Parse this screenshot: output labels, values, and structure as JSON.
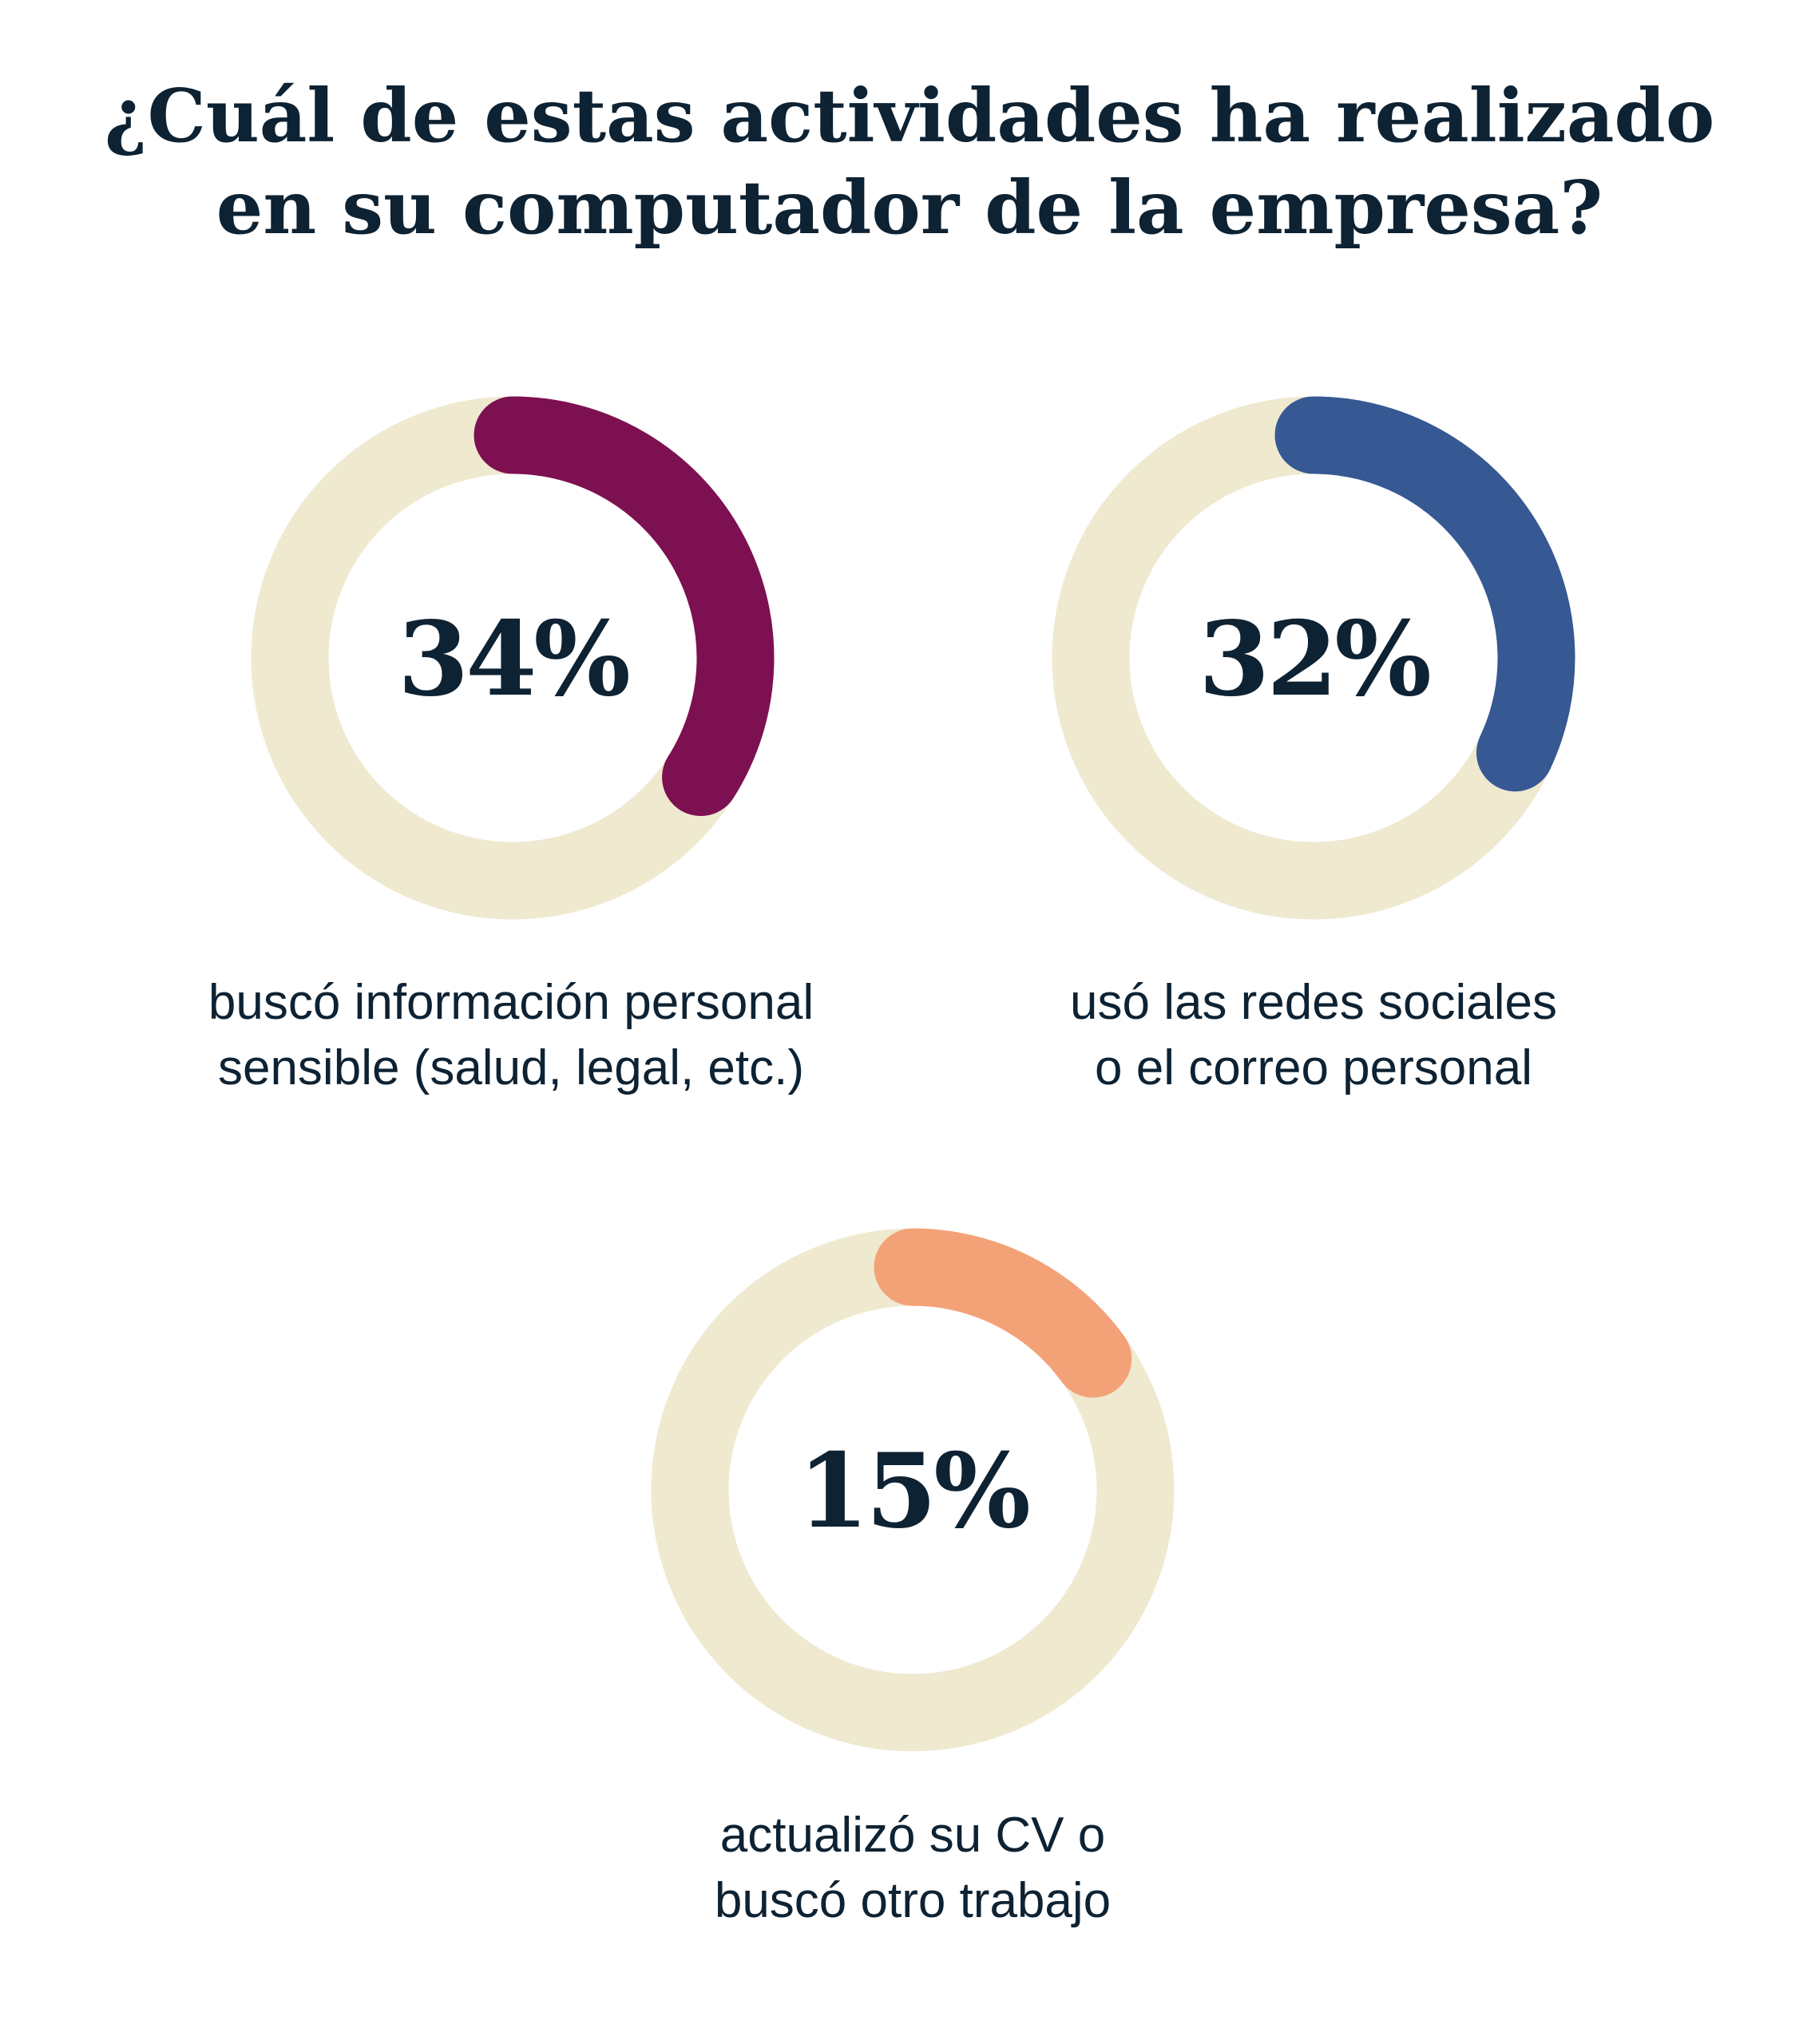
{
  "title": {
    "line1": "¿Cuál de estas actividades ha realizado",
    "line2": "en su computador de la empresa?"
  },
  "chart_data": {
    "type": "donut",
    "track_color": "#efe9d0",
    "items": [
      {
        "value": 34,
        "value_label": "34%",
        "label_line1": "buscó información personal",
        "label_line2": "sensible (salud, legal, etc.)",
        "color": "#7d1051"
      },
      {
        "value": 32,
        "value_label": "32%",
        "label_line1": "usó las redes sociales",
        "label_line2": "o el correo personal",
        "color": "#365893"
      },
      {
        "value": 15,
        "value_label": "15%",
        "label_line1": "actualizó su CV o",
        "label_line2": "buscó otro trabajo",
        "color": "#f3a277"
      }
    ]
  }
}
